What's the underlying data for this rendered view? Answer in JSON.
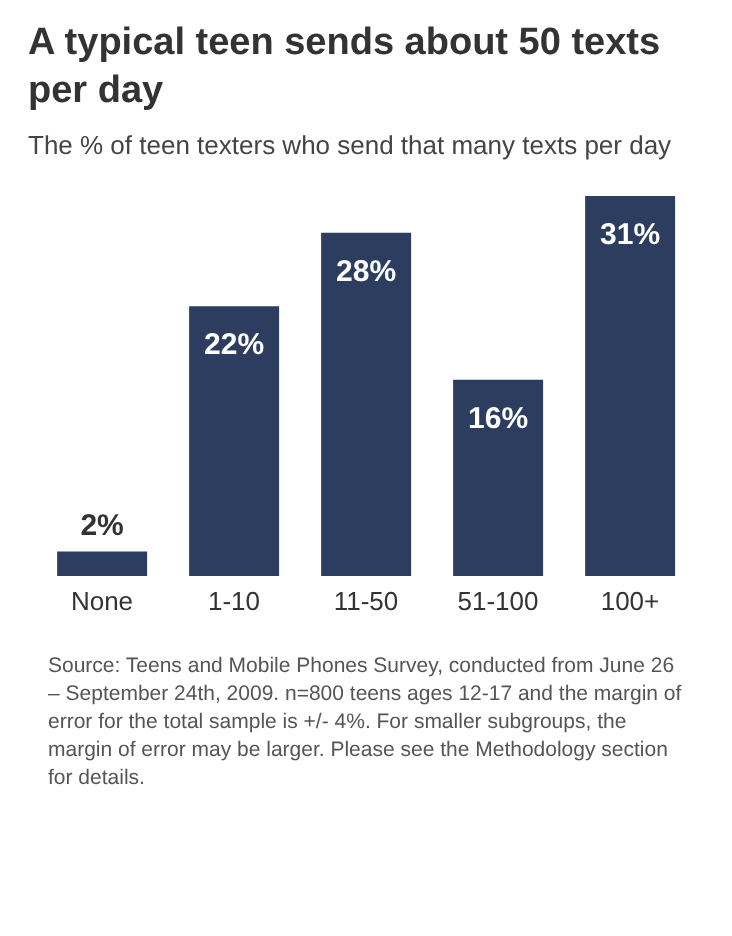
{
  "chart_data": {
    "type": "bar",
    "title": "A typical teen sends about 50 texts per day",
    "subtitle": "The % of teen texters who send that many texts per day",
    "categories": [
      "None",
      "1-10",
      "11-50",
      "51-100",
      "100+"
    ],
    "values": [
      2,
      22,
      28,
      16,
      31
    ],
    "value_labels": [
      "2%",
      "22%",
      "28%",
      "16%",
      "31%"
    ],
    "color": "#2c3d5f",
    "annotations": [
      "Source: Teens and Mobile Phones Survey, conducted from June 26 – September 24th, 2009. n=800 teens ages 12-17 and the margin of error for the total sample is +/- 4%. For smaller subgroups, the margin of error may be larger. Please see the Methodology section for details."
    ]
  }
}
